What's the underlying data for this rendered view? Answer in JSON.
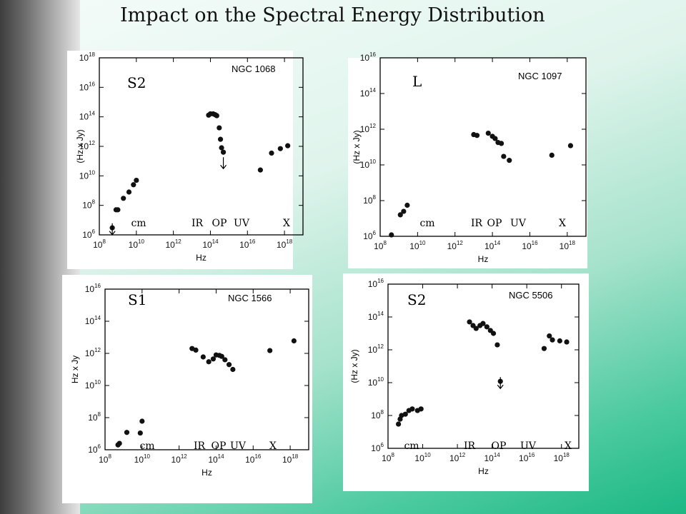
{
  "slide": {
    "title": "Impact on the Spectral Energy Distribution",
    "colors": {
      "sidebar": "#5a5a5a",
      "background": "#dff4ec",
      "accent": "#1cb884"
    }
  },
  "chart_data": [
    {
      "type": "scatter",
      "title": "NGC 1068",
      "class_label": "S2",
      "xlabel": "Hz",
      "ylabel": "(Hz x Jy)",
      "log_scale": true,
      "xlim": [
        100000000.0,
        1e+19
      ],
      "ylim": [
        1000000.0,
        1e+18
      ],
      "x_ticks": [
        "10^8",
        "10^10",
        "10^12",
        "10^14",
        "10^16",
        "10^18"
      ],
      "y_ticks": [
        "10^6",
        "10^8",
        "10^10",
        "10^12",
        "10^14",
        "10^16",
        "10^18"
      ],
      "band_labels": [
        "cm",
        "IR",
        "OP",
        "UV",
        "X"
      ],
      "series": [
        {
          "points": [
            [
              500000000.0,
              3000000.0
            ],
            [
              800000000.0,
              50000000.0
            ],
            [
              1000000000.0,
              50000000.0
            ],
            [
              2000000000.0,
              300000000.0
            ],
            [
              4000000000.0,
              800000000.0
            ],
            [
              7000000000.0,
              2500000000.0
            ],
            [
              10000000000.0,
              5000000000.0
            ],
            [
              80000000000000.0,
              130000000000000.0
            ],
            [
              100000000000000.0,
              160000000000000.0
            ],
            [
              140000000000000.0,
              160000000000000.0
            ],
            [
              180000000000000.0,
              140000000000000.0
            ],
            [
              220000000000000.0,
              120000000000000.0
            ],
            [
              300000000000000.0,
              18000000000000.0
            ],
            [
              350000000000000.0,
              3000000000000.0
            ],
            [
              400000000000000.0,
              800000000000.0
            ],
            [
              500000000000000.0,
              400000000000.0
            ],
            [
              5e+16,
              25000000000.0
            ],
            [
              2e+17,
              350000000000.0
            ],
            [
              6e+17,
              700000000000.0
            ],
            [
              1.5e+18,
              1100000000000.0
            ]
          ]
        }
      ],
      "upper_limits": [
        [
          500000000.0,
          2000000.0
        ],
        [
          500000000000000.0,
          60000000000.0
        ]
      ]
    },
    {
      "type": "scatter",
      "title": "NGC 1097",
      "class_label": "L",
      "xlabel": "Hz",
      "ylabel": "(Hz x Jy)",
      "log_scale": true,
      "xlim": [
        100000000.0,
        1e+19
      ],
      "ylim": [
        1000000.0,
        1e+16
      ],
      "x_ticks": [
        "10^8",
        "10^10",
        "10^12",
        "10^14",
        "10^16",
        "10^18"
      ],
      "y_ticks": [
        "10^6",
        "10^8",
        "10^10",
        "10^12",
        "10^14",
        "10^16"
      ],
      "band_labels": [
        "cm",
        "IR",
        "OP",
        "UV",
        "X"
      ],
      "series": [
        {
          "points": [
            [
              400000000.0,
              1200000.0
            ],
            [
              1200000000.0,
              16000000.0
            ],
            [
              1800000000.0,
              25000000.0
            ],
            [
              2800000000.0,
              55000000.0
            ],
            [
              10000000000000.0,
              500000000000.0
            ],
            [
              15000000000000.0,
              450000000000.0
            ],
            [
              60000000000000.0,
              600000000000.0
            ],
            [
              100000000000000.0,
              400000000000.0
            ],
            [
              140000000000000.0,
              300000000000.0
            ],
            [
              200000000000000.0,
              180000000000.0
            ],
            [
              300000000000000.0,
              160000000000.0
            ],
            [
              400000000000000.0,
              30000000000.0
            ],
            [
              800000000000000.0,
              18000000000.0
            ],
            [
              1.5e+17,
              35000000000.0
            ],
            [
              1.5e+18,
              120000000000.0
            ]
          ]
        }
      ],
      "upper_limits": []
    },
    {
      "type": "scatter",
      "title": "NGC 1566",
      "class_label": "S1",
      "xlabel": "Hz",
      "ylabel": "Hz x Jy",
      "log_scale": true,
      "xlim": [
        100000000.0,
        1e+19
      ],
      "ylim": [
        1000000.0,
        1e+16
      ],
      "x_ticks": [
        "10^8",
        "10^10",
        "10^12",
        "10^14",
        "10^16",
        "10^18"
      ],
      "y_ticks": [
        "10^6",
        "10^8",
        "10^10",
        "10^12",
        "10^14",
        "10^16"
      ],
      "band_labels": [
        "cm",
        "IR",
        "OP",
        "UV",
        "X"
      ],
      "series": [
        {
          "points": [
            [
              500000000.0,
              2000000.0
            ],
            [
              600000000.0,
              2500000.0
            ],
            [
              1500000000.0,
              12000000.0
            ],
            [
              8000000000.0,
              11000000.0
            ],
            [
              10000000000.0,
              60000000.0
            ],
            [
              5000000000000.0,
              2000000000000.0
            ],
            [
              8000000000000.0,
              1600000000000.0
            ],
            [
              20000000000000.0,
              600000000000.0
            ],
            [
              40000000000000.0,
              300000000000.0
            ],
            [
              70000000000000.0,
              450000000000.0
            ],
            [
              100000000000000.0,
              800000000000.0
            ],
            [
              150000000000000.0,
              750000000000.0
            ],
            [
              200000000000000.0,
              650000000000.0
            ],
            [
              300000000000000.0,
              400000000000.0
            ],
            [
              500000000000000.0,
              200000000000.0
            ],
            [
              800000000000000.0,
              100000000000.0
            ],
            [
              8e+16,
              1500000000000.0
            ],
            [
              1.6e+18,
              6000000000000.0
            ]
          ]
        }
      ],
      "upper_limits": []
    },
    {
      "type": "scatter",
      "title": "NGC 5506",
      "class_label": "S2",
      "xlabel": "Hz",
      "ylabel": "(Hz x Jy)",
      "log_scale": true,
      "xlim": [
        100000000.0,
        1e+19
      ],
      "ylim": [
        1000000.0,
        1e+16
      ],
      "x_ticks": [
        "10^8",
        "10^10",
        "10^12",
        "10^14",
        "10^16",
        "10^18"
      ],
      "y_ticks": [
        "10^6",
        "10^8",
        "10^10",
        "10^12",
        "10^14",
        "10^16"
      ],
      "band_labels": [
        "cm",
        "IR",
        "OP",
        "UV",
        "X"
      ],
      "series": [
        {
          "points": [
            [
              400000000.0,
              30000000.0
            ],
            [
              500000000.0,
              60000000.0
            ],
            [
              600000000.0,
              100000000.0
            ],
            [
              1000000000.0,
              120000000.0
            ],
            [
              1600000000.0,
              200000000.0
            ],
            [
              2500000000.0,
              250000000.0
            ],
            [
              5000000000.0,
              200000000.0
            ],
            [
              8000000000.0,
              250000000.0
            ],
            [
              5000000000000.0,
              50000000000000.0
            ],
            [
              8000000000000.0,
              30000000000000.0
            ],
            [
              12000000000000.0,
              20000000000000.0
            ],
            [
              20000000000000.0,
              30000000000000.0
            ],
            [
              30000000000000.0,
              40000000000000.0
            ],
            [
              50000000000000.0,
              25000000000000.0
            ],
            [
              80000000000000.0,
              15000000000000.0
            ],
            [
              120000000000000.0,
              10000000000000.0
            ],
            [
              200000000000000.0,
              2000000000000.0
            ],
            [
              300000000000000.0,
              12000000000.0
            ],
            [
              1e+17,
              1200000000000.0
            ],
            [
              2e+17,
              7000000000000.0
            ],
            [
              3e+17,
              4000000000000.0
            ],
            [
              8e+17,
              3500000000000.0
            ],
            [
              2e+18,
              3000000000000.0
            ]
          ]
        }
      ],
      "upper_limits": [
        [
          300000000000000.0,
          8000000000.0
        ]
      ]
    }
  ]
}
